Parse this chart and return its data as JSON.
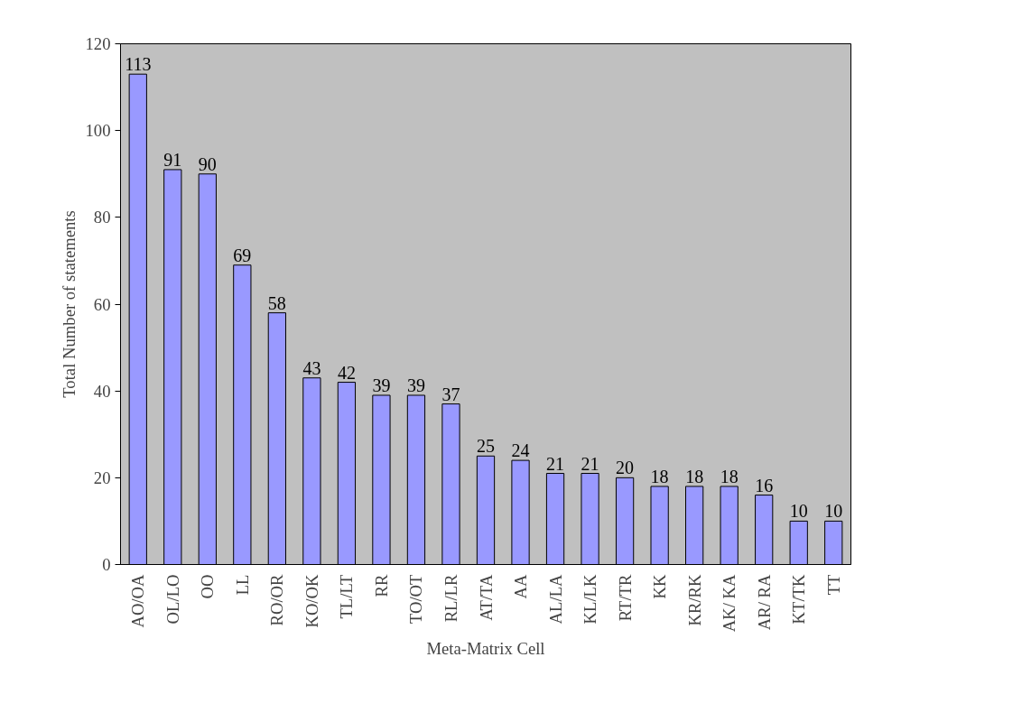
{
  "chart_data": {
    "type": "bar",
    "xlabel": "Meta-Matrix Cell",
    "ylabel": "Total Number of statements",
    "categories": [
      "AO/OA",
      "OL/LO",
      "OO",
      "LL",
      "RO/OR",
      "KO/OK",
      "TL/LT",
      "RR",
      "TO/OT",
      "RL/LR",
      "AT/TA",
      "AA",
      "AL/LA",
      "KL/LK",
      "RT/TR",
      "KK",
      "KR/RK",
      "AK/ KA",
      "AR/ RA",
      "KT/TK",
      "TT"
    ],
    "values": [
      113,
      91,
      90,
      69,
      58,
      43,
      42,
      39,
      39,
      37,
      25,
      24,
      21,
      21,
      20,
      18,
      18,
      18,
      16,
      10,
      10
    ],
    "color": "#9999ff",
    "ylim": [
      0,
      120
    ],
    "yticks": [
      0,
      20,
      40,
      60,
      80,
      100,
      120
    ],
    "grid": false,
    "data_labels": true
  }
}
